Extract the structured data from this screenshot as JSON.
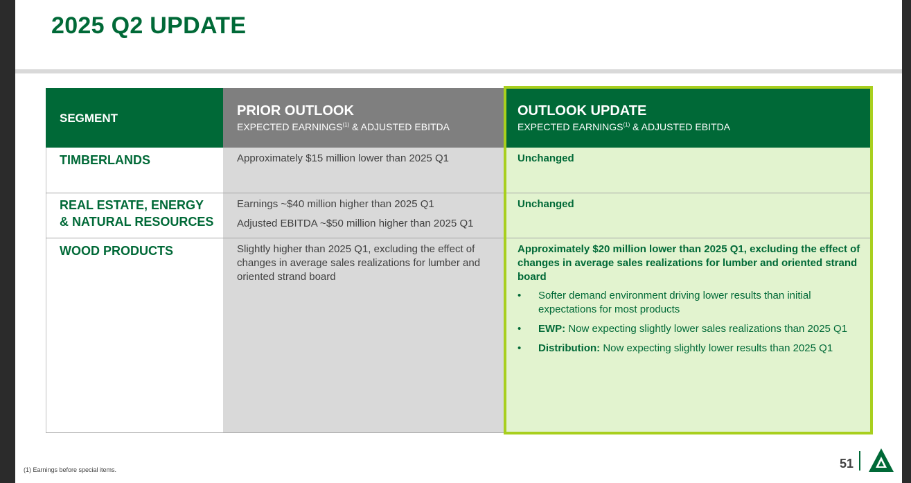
{
  "title": "2025 Q2 UPDATE",
  "table": {
    "headers": {
      "segment": "SEGMENT",
      "prior_title": "PRIOR OUTLOOK",
      "prior_sub_a": "EXPECTED EARNINGS",
      "prior_sub_sup": "(1)",
      "prior_sub_b": " & ADJUSTED EBITDA",
      "update_title": "OUTLOOK UPDATE",
      "update_sub_a": "EXPECTED EARNINGS",
      "update_sub_sup": "(1)",
      "update_sub_b": " & ADJUSTED EBITDA"
    },
    "rows": [
      {
        "segment": "TIMBERLANDS",
        "prior": "Approximately $15 million lower than 2025 Q1",
        "update": "Unchanged"
      },
      {
        "segment_line1": "REAL ESTATE, ENERGY",
        "segment_line2": "& NATURAL RESOURCES",
        "prior_line1": "Earnings ~$40 million higher than 2025 Q1",
        "prior_line2": "Adjusted EBITDA ~$50 million higher than 2025 Q1",
        "update": "Unchanged"
      },
      {
        "segment": "WOOD PRODUCTS",
        "prior": "Slightly higher than 2025 Q1, excluding the effect of changes in average sales realizations for lumber and oriented strand board",
        "update": "Approximately $20 million lower than 2025 Q1, excluding the effect of changes in average sales realizations for lumber and oriented strand board",
        "bullets": [
          {
            "lead": "",
            "text": "Softer demand environment driving lower results than initial expectations for most products"
          },
          {
            "lead": "EWP:",
            "text": " Now expecting slightly lower sales realizations than 2025 Q1"
          },
          {
            "lead": "Distribution:",
            "text": " Now expecting slightly lower results than 2025 Q1"
          }
        ]
      }
    ]
  },
  "bullet_char": "•",
  "footnote": "(1) Earnings before special items.",
  "page_number": "51",
  "colors": {
    "brand_green": "#006937",
    "highlight_lime": "#a8cf1e",
    "update_bg": "#e2f3cf",
    "prior_bg": "#d9d9d9",
    "prior_header": "#7f7f7f"
  }
}
